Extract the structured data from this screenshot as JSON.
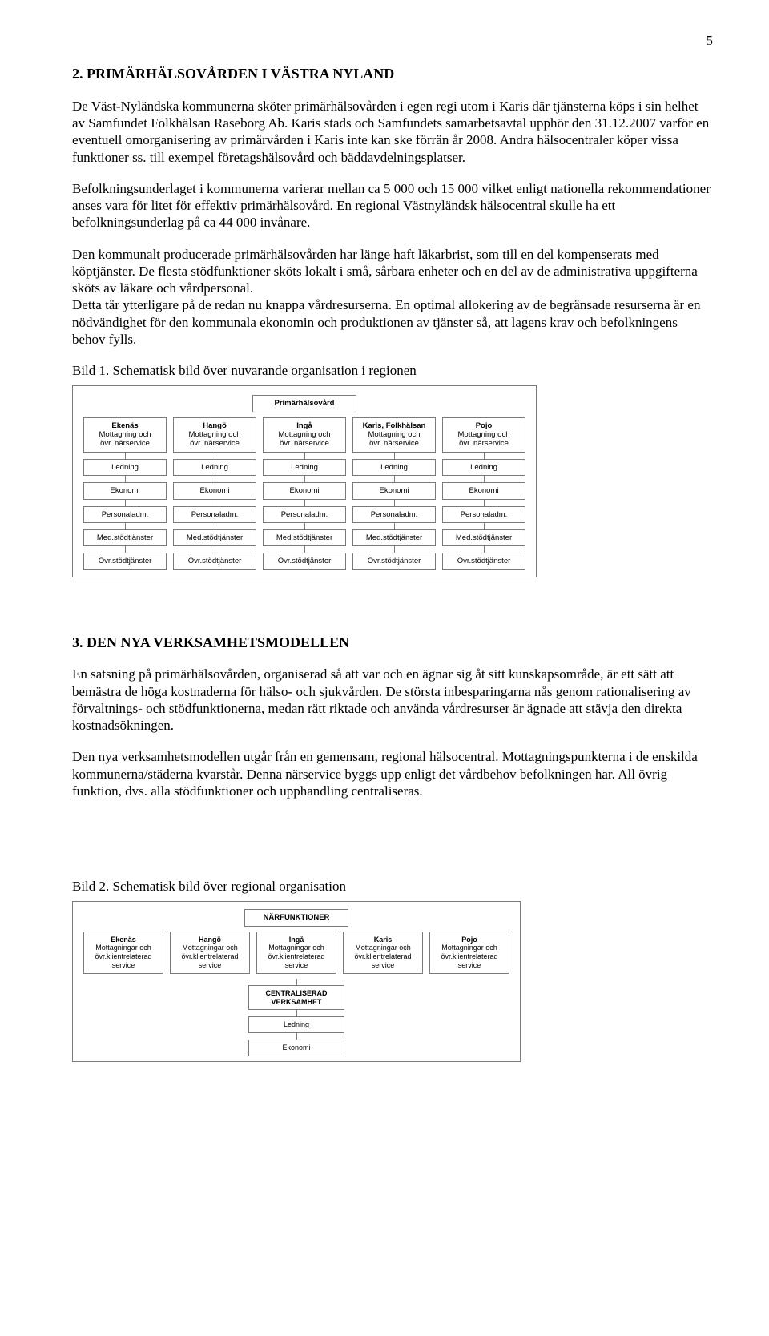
{
  "page_number": "5",
  "h1": "2. PRIMÄRHÄLSOVÅRDEN I VÄSTRA NYLAND",
  "p1": "De Väst-Nyländska kommunerna sköter primärhälsovården i egen regi utom i Karis där tjänsterna köps i sin helhet av Samfundet Folkhälsan Raseborg Ab. Karis stads och Samfundets samarbetsavtal upphör den 31.12.2007 varför en eventuell omorganisering av primärvården i Karis inte kan ske förrän år 2008. Andra hälsocentraler köper vissa funktioner ss. till exempel företagshälsovård och bäddavdelningsplatser.",
  "p2": "Befolkningsunderlaget i kommunerna varierar mellan ca 5 000 och 15 000 vilket enligt nationella rekommendationer anses vara för litet för effektiv primärhälsovård. En regional Västnyländsk hälsocentral skulle ha ett befolkningsunderlag på ca 44 000 invånare.",
  "p3": "Den kommunalt producerade primärhälsovården har länge haft läkarbrist, som till en del kompenserats med köptjänster. De flesta stödfunktioner sköts lokalt i små, sårbara enheter och en del av de administrativa uppgifterna sköts av läkare och vårdpersonal.",
  "p4": "Detta tär ytterligare på de redan nu knappa vårdresurserna. En optimal allokering av de begränsade resurserna är en nödvändighet för den kommunala ekonomin och produktionen av tjänster så, att lagens krav och befolkningens behov fylls.",
  "p5": "Bild 1. Schematisk bild över nuvarande organisation i regionen",
  "diagram1": {
    "header": "Primärhälsovård",
    "columns": [
      {
        "title": "Ekenäs",
        "sub1": "Mottagning och",
        "sub2": "övr. närservice"
      },
      {
        "title": "Hangö",
        "sub1": "Mottagning och",
        "sub2": "övr. närservice"
      },
      {
        "title": "Ingå",
        "sub1": "Mottagning och",
        "sub2": "övr. närservice"
      },
      {
        "title": "Karis, Folkhälsan",
        "sub1": "Mottagning och",
        "sub2": "övr. närservice"
      },
      {
        "title": "Pojo",
        "sub1": "Mottagning och",
        "sub2": "övr. närservice"
      }
    ],
    "rows": [
      "Ledning",
      "Ekonomi",
      "Personaladm.",
      "Med.stödtjänster",
      "Övr.stödtjänster"
    ]
  },
  "h2": "3. DEN NYA VERKSAMHETSMODELLEN",
  "p6": "En satsning på primärhälsovården, organiserad så att var och en ägnar sig åt sitt kunskapsområde, är ett sätt att bemästra de höga kostnaderna för hälso- och sjukvården. De största inbesparingarna nås genom rationalisering av förvaltnings- och stödfunktionerna, medan rätt riktade och använda vårdresurser är ägnade att stävja den direkta kostnadsökningen.",
  "p7": "Den nya verksamhetsmodellen utgår från en gemensam, regional hälsocentral. Mottagningspunkterna i de enskilda kommunerna/städerna kvarstår. Denna närservice byggs upp enligt det vårdbehov befolkningen har. All övrig funktion, dvs. alla stödfunktioner och upphandling centraliseras.",
  "p8": "Bild 2. Schematisk bild över regional organisation",
  "diagram2": {
    "header": "NÄRFUNKTIONER",
    "columns": [
      {
        "title": "Ekenäs",
        "sub1": "Mottagningar och",
        "sub2": "övr.klientrelaterad",
        "sub3": "service"
      },
      {
        "title": "Hangö",
        "sub1": "Mottagningar och",
        "sub2": "övr.klientrelaterad",
        "sub3": "service"
      },
      {
        "title": "Ingå",
        "sub1": "Mottagningar och",
        "sub2": "övr.klientrelaterad",
        "sub3": "service"
      },
      {
        "title": "Karis",
        "sub1": "Mottagningar och",
        "sub2": "övr.klientrelaterad",
        "sub3": "service"
      },
      {
        "title": "Pojo",
        "sub1": "Mottagningar och",
        "sub2": "övr.klientrelaterad",
        "sub3": "service"
      }
    ],
    "center_rows": [
      "CENTRALISERAD\nVERKSAMHET",
      "Ledning",
      "Ekonomi"
    ]
  }
}
